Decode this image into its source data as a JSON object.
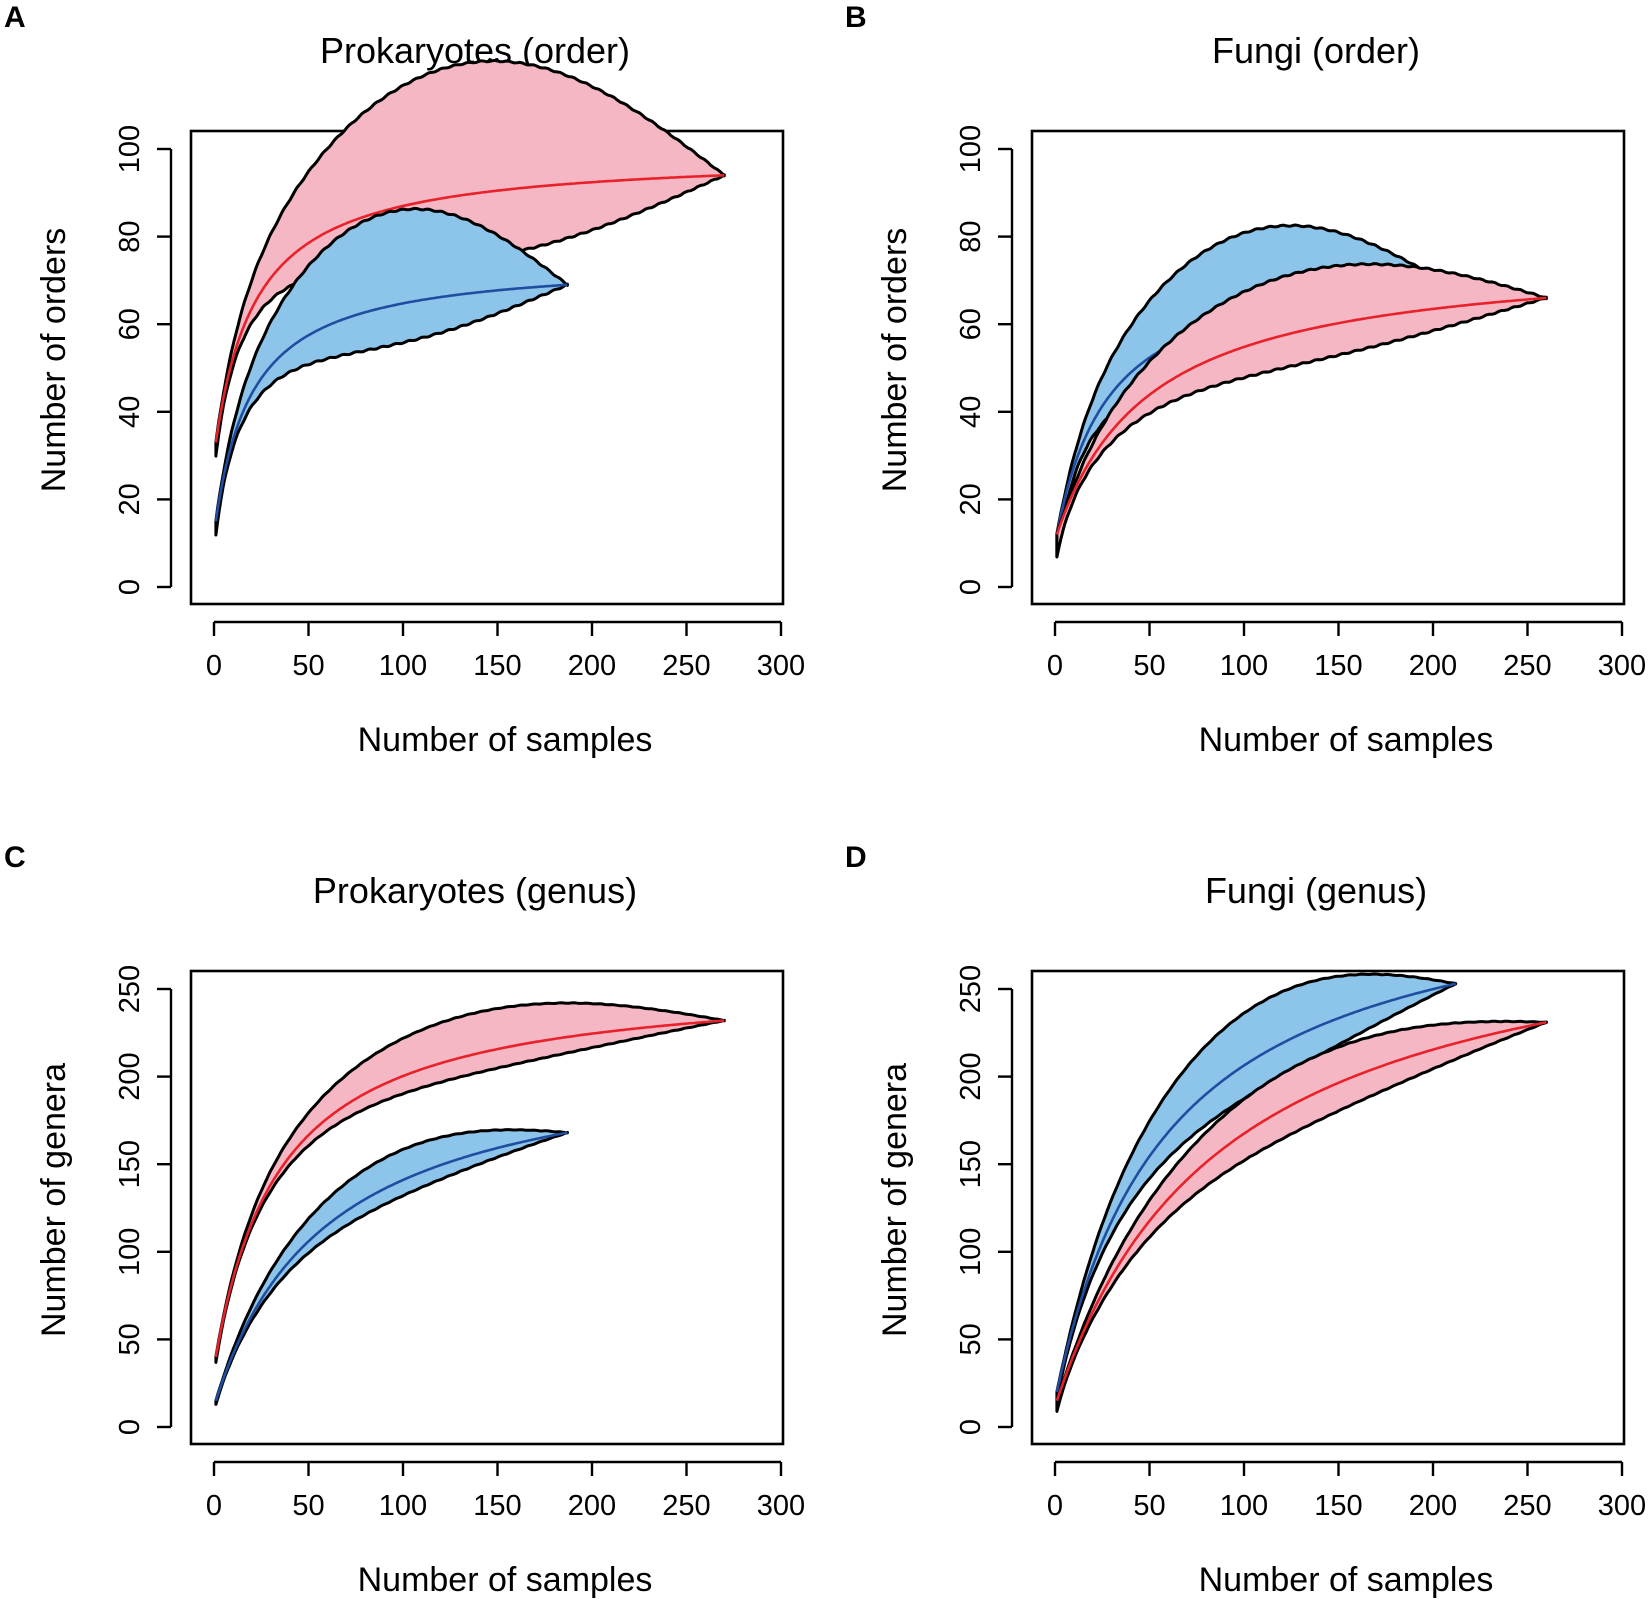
{
  "chart_data": [
    {
      "panel": "A",
      "type": "area",
      "title": "Prokaryotes (order)",
      "xlabel": "Number of samples",
      "ylabel": "Number of orders",
      "xlim": [
        0,
        300
      ],
      "ylim": [
        0,
        100
      ],
      "xticks": [
        0,
        50,
        100,
        150,
        200,
        250,
        300
      ],
      "yticks": [
        0,
        20,
        40,
        60,
        80,
        100
      ],
      "series": [
        {
          "name": "red",
          "n_max": 270,
          "start": 33,
          "final": 94,
          "half_sat": 22,
          "lower": [
            3,
            30
          ],
          "upper": [
            38,
            60
          ],
          "fill": "#f4b7c3",
          "line": "#e8222b"
        },
        {
          "name": "blue",
          "n_max": 187,
          "start": 15,
          "final": 69,
          "half_sat": 20,
          "lower": [
            3,
            18
          ],
          "upper": [
            33,
            43
          ],
          "fill": "#8cc4ea",
          "line": "#1f4ea1"
        }
      ]
    },
    {
      "panel": "B",
      "type": "area",
      "title": "Fungi (order)",
      "xlabel": "Number of samples",
      "ylabel": "Number of orders",
      "xlim": [
        0,
        300
      ],
      "ylim": [
        0,
        100
      ],
      "xticks": [
        0,
        50,
        100,
        150,
        200,
        250,
        300
      ],
      "yticks": [
        0,
        20,
        40,
        60,
        80,
        100
      ],
      "series": [
        {
          "name": "blue",
          "n_max": 212,
          "start": 12,
          "final": 68,
          "half_sat": 28,
          "lower": [
            5,
            23
          ],
          "upper": [
            20,
            39
          ],
          "fill": "#8cc4ea",
          "line": "#1f4ea1"
        },
        {
          "name": "red",
          "n_max": 260,
          "start": 12,
          "final": 66,
          "half_sat": 50,
          "lower": [
            5,
            15
          ],
          "upper": [
            19,
            27
          ],
          "fill": "#f4b7c3",
          "line": "#e8222b"
        }
      ]
    },
    {
      "panel": "C",
      "type": "area",
      "title": "Prokaryotes (genus)",
      "xlabel": "Number of samples",
      "ylabel": "Number of genera",
      "xlim": [
        0,
        300
      ],
      "ylim": [
        0,
        250
      ],
      "xticks": [
        0,
        50,
        100,
        150,
        200,
        250,
        300
      ],
      "yticks": [
        0,
        50,
        100,
        150,
        200,
        250
      ],
      "series": [
        {
          "name": "red",
          "n_max": 270,
          "start": 40,
          "final": 232,
          "half_sat": 35,
          "lower": [
            3,
            22
          ],
          "upper": [
            40,
            47
          ],
          "fill": "#f4b7c3",
          "line": "#e8222b"
        },
        {
          "name": "blue",
          "n_max": 187,
          "start": 15,
          "final": 168,
          "half_sat": 60,
          "lower": [
            2,
            18
          ],
          "upper": [
            25,
            35
          ],
          "fill": "#8cc4ea",
          "line": "#1f4ea1"
        }
      ]
    },
    {
      "panel": "D",
      "type": "area",
      "title": "Fungi (genus)",
      "xlabel": "Number of samples",
      "ylabel": "Number of genera",
      "xlim": [
        0,
        300
      ],
      "ylim": [
        0,
        250
      ],
      "xticks": [
        0,
        50,
        100,
        150,
        200,
        250,
        300
      ],
      "yticks": [
        0,
        50,
        100,
        150,
        200,
        250
      ],
      "series": [
        {
          "name": "blue",
          "n_max": 212,
          "start": 20,
          "final": 253,
          "half_sat": 60,
          "lower": [
            5,
            38
          ],
          "upper": [
            20,
            60
          ],
          "fill": "#8cc4ea",
          "line": "#1f4ea1"
        },
        {
          "name": "red",
          "n_max": 260,
          "start": 15,
          "final": 231,
          "half_sat": 90,
          "lower": [
            6,
            33
          ],
          "upper": [
            12,
            42
          ],
          "fill": "#f4b7c3",
          "line": "#e8222b"
        }
      ]
    }
  ]
}
